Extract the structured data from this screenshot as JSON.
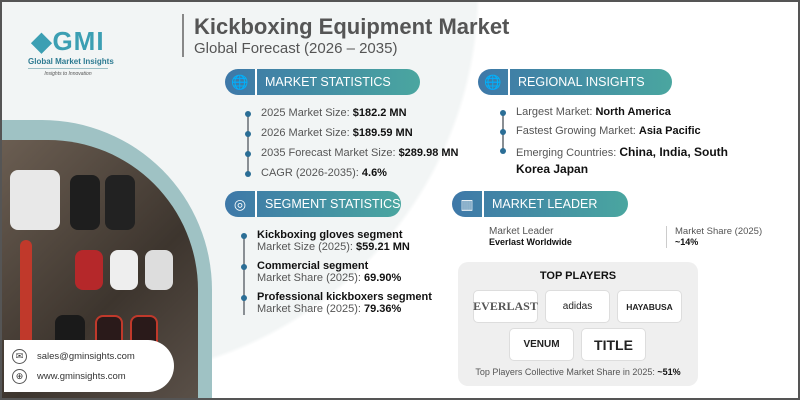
{
  "header": {
    "title": "Kickboxing Equipment Market",
    "subtitle": "Global Forecast (2026 – 2035)"
  },
  "logo": {
    "mark": "GMI",
    "name": "Global Market Insights",
    "tagline": "Insights to Innovation"
  },
  "market_statistics": {
    "heading": "MARKET STATISTICS",
    "icon": "globe-chart-icon",
    "items": [
      {
        "label": "2025 Market Size: ",
        "value": "$182.2 MN"
      },
      {
        "label": "2026 Market Size: ",
        "value": "$189.59 MN"
      },
      {
        "label": "2035 Forecast Market Size: ",
        "value": "$289.98 MN"
      },
      {
        "label": "CAGR (2026-2035): ",
        "value": "4.6%"
      }
    ]
  },
  "regional_insights": {
    "heading": "REGIONAL INSIGHTS",
    "icon": "globe-icon",
    "items": [
      {
        "label": "Largest Market: ",
        "value": "North America"
      },
      {
        "label": "Fastest Growing Market: ",
        "value": "Asia Pacific"
      },
      {
        "label": "Emerging Countries:  ",
        "value": "China, India, South Korea Japan"
      }
    ]
  },
  "segment_statistics": {
    "heading": "SEGMENT STATISTICS",
    "icon": "target-chart-icon",
    "items": [
      {
        "title": "Kickboxing gloves segment",
        "label": "Market Size (2025): ",
        "value": "$59.21 MN"
      },
      {
        "title": "Commercial segment",
        "label": "Market Share (2025): ",
        "value": "69.90%"
      },
      {
        "title": "Professional kickboxers segment",
        "label": "Market Share (2025): ",
        "value": "79.36%"
      }
    ]
  },
  "market_leader": {
    "heading": "MARKET LEADER",
    "icon": "bar-chart-icon",
    "leader_label": "Market Leader",
    "leader": "Everlast Worldwide",
    "share_label": "Market Share (2025)",
    "share": "~14%"
  },
  "top_players": {
    "heading": "TOP PLAYERS",
    "logos": [
      "EVERLAST",
      "adidas",
      "HAYABUSA",
      "VENUM",
      "TITLE"
    ],
    "footer_label": "Top Players Collective Market Share in 2025: ",
    "footer_value": "~51%"
  },
  "contact": {
    "email": "sales@gminsights.com",
    "website": "www.gminsights.com"
  },
  "colors": {
    "pill_start": "#3e78a8",
    "pill_end": "#4aa6a0",
    "accent_arc": "#9fc2c4"
  }
}
